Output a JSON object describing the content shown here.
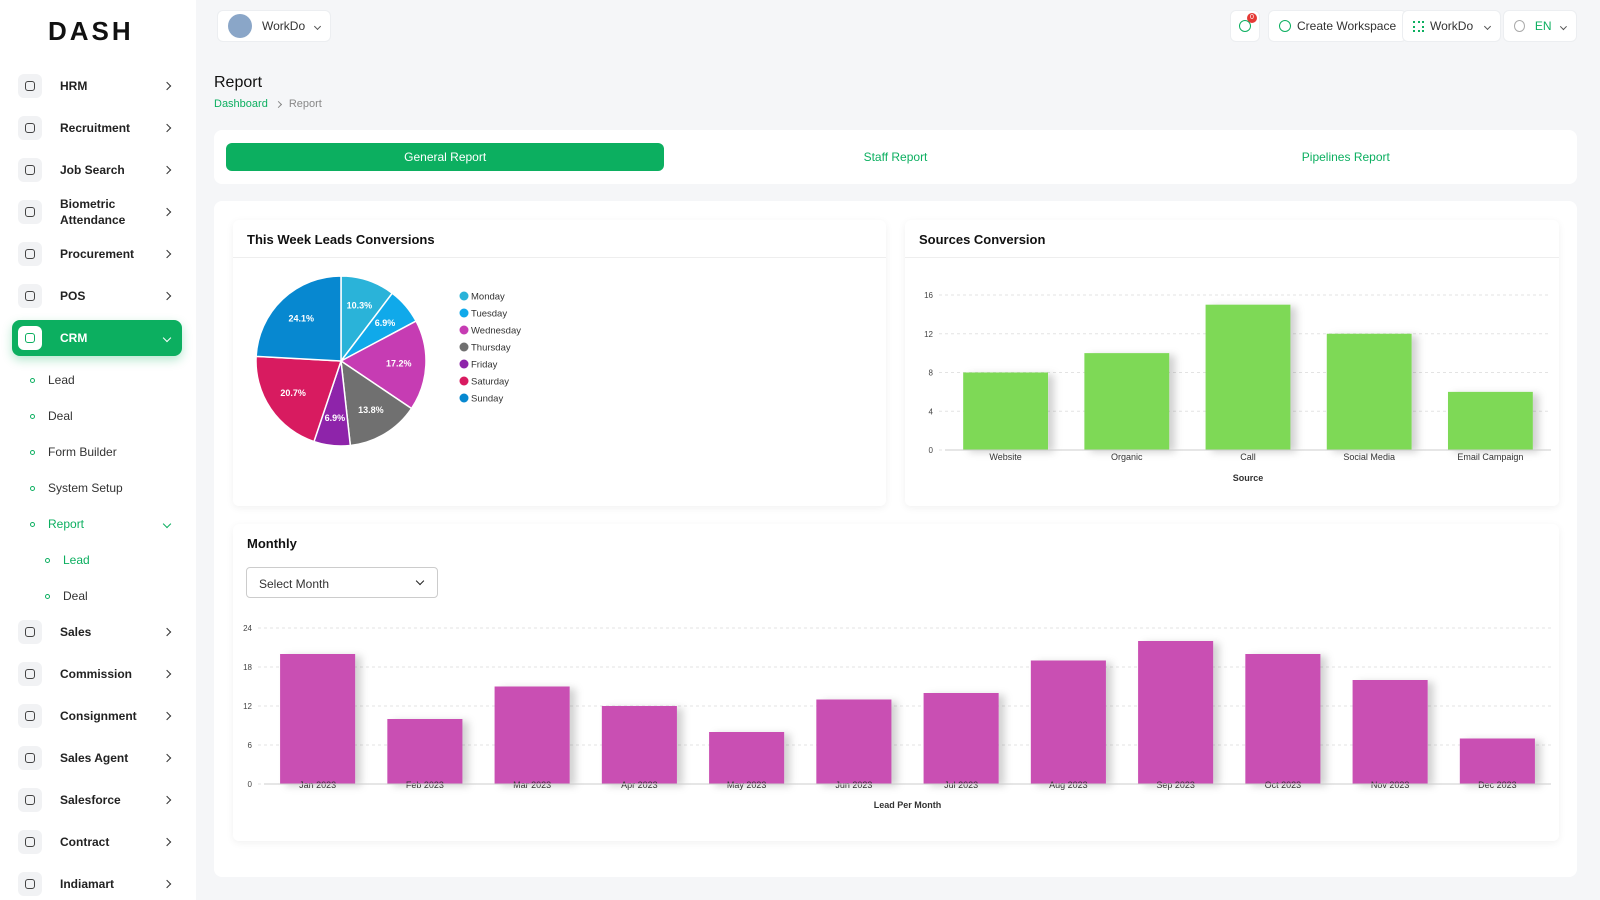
{
  "header": {
    "logo": "DASH",
    "workspace": "WorkDo",
    "notifications": "0",
    "create_workspace": "Create Workspace",
    "user": "WorkDo",
    "language": "EN"
  },
  "sidebar": {
    "menu": [
      {
        "label": "HRM"
      },
      {
        "label": "Recruitment"
      },
      {
        "label": "Job Search"
      },
      {
        "label": "Biometric Attendance"
      },
      {
        "label": "Procurement"
      },
      {
        "label": "POS"
      },
      {
        "label": "CRM",
        "active": true,
        "submenu": [
          {
            "label": "Lead"
          },
          {
            "label": "Deal"
          },
          {
            "label": "Form Builder"
          },
          {
            "label": "System Setup"
          },
          {
            "label": "Report",
            "active": true,
            "submenu": [
              {
                "label": "Lead",
                "active": true
              },
              {
                "label": "Deal"
              }
            ]
          }
        ]
      },
      {
        "label": "Sales"
      },
      {
        "label": "Commission"
      },
      {
        "label": "Consignment"
      },
      {
        "label": "Sales Agent"
      },
      {
        "label": "Salesforce"
      },
      {
        "label": "Contract"
      },
      {
        "label": "Indiamart"
      }
    ]
  },
  "page": {
    "title": "Report",
    "breadcrumb": [
      "Dashboard",
      "Report"
    ]
  },
  "tabs": [
    {
      "label": "General Report",
      "active": true
    },
    {
      "label": "Staff Report"
    },
    {
      "label": "Pipelines Report"
    }
  ],
  "pie_chart": {
    "type": "pie",
    "title": "This Week Leads Conversions",
    "categories": [
      "Monday",
      "Tuesday",
      "Wednesday",
      "Thursday",
      "Friday",
      "Saturday",
      "Sunday"
    ],
    "values": [
      10.3,
      6.9,
      17.2,
      13.8,
      6.9,
      20.7,
      24.1
    ],
    "value_labels": [
      "10.3%",
      "6.9%",
      "17.2%",
      "13.8%",
      "6.9%",
      "20.7%",
      "24.1%"
    ],
    "colors": [
      "#2ab3d9",
      "#10a9ea",
      "#c63cb3",
      "#707070",
      "#8e24aa",
      "#d81b60",
      "#0788d0"
    ]
  },
  "sources_chart": {
    "type": "bar",
    "title": "Sources Conversion",
    "x_label": "Source",
    "categories": [
      "Website",
      "Organic",
      "Call",
      "Social Media",
      "Email Campaign"
    ],
    "values": [
      8,
      10,
      15,
      12,
      6
    ],
    "color": "#7ed957",
    "ylim": [
      0,
      16
    ],
    "yticks": [
      0,
      4,
      8,
      12,
      16
    ],
    "grid": true
  },
  "monthly_chart": {
    "type": "bar",
    "title": "Monthly",
    "select": "Select Month",
    "x_label": "Lead Per Month",
    "categories": [
      "Jan 2023",
      "Feb 2023",
      "Mar 2023",
      "Apr 2023",
      "May 2023",
      "Jun 2023",
      "Jul 2023",
      "Aug 2023",
      "Sep 2023",
      "Oct 2023",
      "Nov 2023",
      "Dec 2023"
    ],
    "values": [
      20,
      10,
      15,
      12,
      8,
      13,
      14,
      19,
      22,
      20,
      16,
      7
    ],
    "color": "#c94fb3",
    "ylim": [
      0,
      24
    ],
    "yticks": [
      0,
      6,
      12,
      18,
      24
    ],
    "grid": true
  }
}
